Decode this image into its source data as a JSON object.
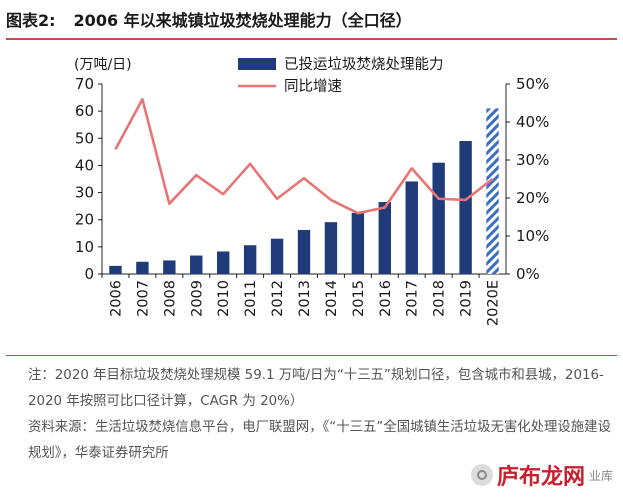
{
  "figure": {
    "label": "图表2:",
    "title": "2006 年以来城镇垃圾焚烧处理能力（全口径）"
  },
  "chart_data": {
    "type": "bar",
    "categories": [
      "2006",
      "2007",
      "2008",
      "2009",
      "2010",
      "2011",
      "2012",
      "2013",
      "2014",
      "2015",
      "2016",
      "2017",
      "2018",
      "2019",
      "2020E"
    ],
    "y_unit": "(万吨/日)",
    "series": [
      {
        "name": "已投运垃圾焚烧处理能力",
        "kind": "bar",
        "axis": "left",
        "values": [
          3.0,
          4.5,
          5.0,
          6.8,
          8.3,
          10.6,
          13.0,
          16.2,
          19.1,
          22.5,
          26.5,
          34.1,
          41.0,
          49.0,
          61.0
        ],
        "projected": [
          false,
          false,
          false,
          false,
          false,
          false,
          false,
          false,
          false,
          false,
          false,
          false,
          false,
          false,
          true
        ],
        "color": "#1f3b7a"
      },
      {
        "name": "同比增速",
        "kind": "line",
        "axis": "right",
        "values": [
          32.8,
          46.0,
          18.5,
          26.0,
          21.0,
          29.0,
          19.8,
          25.2,
          19.5,
          16.0,
          17.5,
          27.8,
          19.8,
          19.5,
          25.0
        ],
        "color": "#e87474"
      }
    ],
    "ylim_left": [
      0,
      70
    ],
    "yticks_left": [
      0,
      10,
      20,
      30,
      40,
      50,
      60,
      70
    ],
    "ylim_right": [
      0,
      50
    ],
    "yticks_right": [
      "0%",
      "10%",
      "20%",
      "30%",
      "40%",
      "50%"
    ],
    "legend_position": "top-center",
    "grid": false
  },
  "notes": [
    "注：2020 年目标垃圾焚烧处理规模 59.1 万吨/日为“十三五”规划口径，包含城市和县城，2016-2020 年按照可比口径计算，CAGR 为 20%）",
    "资料来源：生活垃圾焚烧信息平台，电厂联盟网，《“十三五”全国城镇生活垃圾无害化处理设施建设规划》，华泰证券研究所"
  ],
  "watermark": {
    "text": "庐布龙网",
    "suffix": "业库"
  }
}
